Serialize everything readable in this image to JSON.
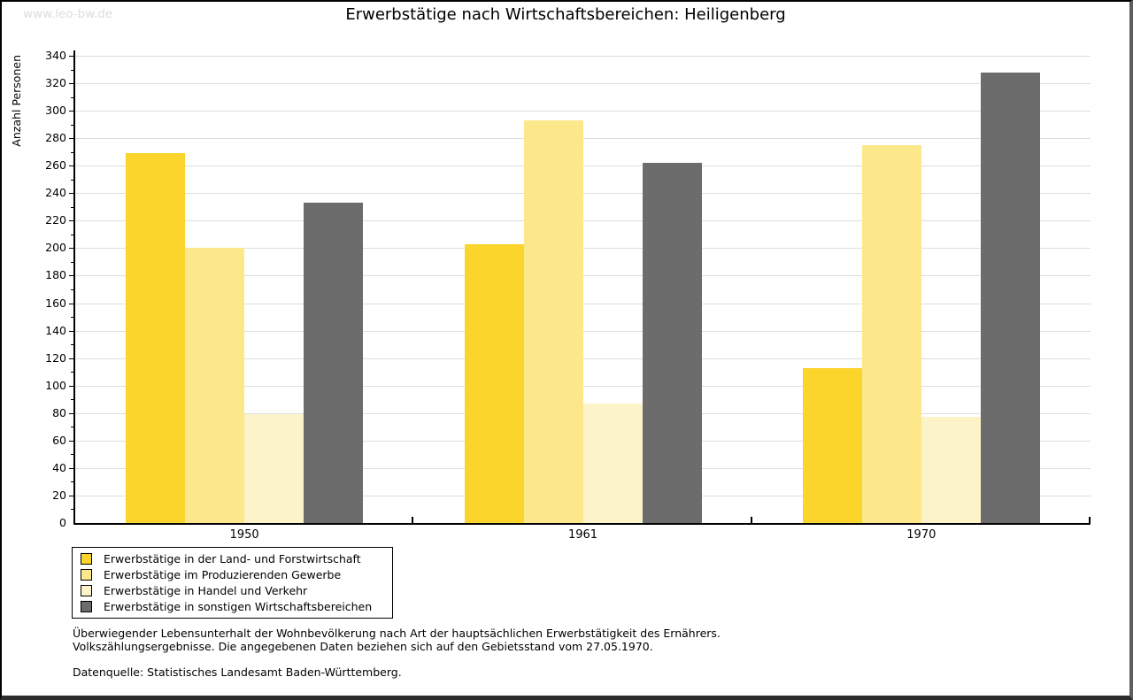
{
  "watermark": "www.leo-bw.de",
  "title": "Erwerbstätige nach Wirtschaftsbereichen: Heiligenberg",
  "chart_data": {
    "type": "bar",
    "title": "Erwerbstätige nach Wirtschaftsbereichen: Heiligenberg",
    "xlabel": "",
    "ylabel": "Anzahl Personen",
    "ylim": [
      0,
      340
    ],
    "ytick_step": 20,
    "y_minor_tick_step": 10,
    "grid": true,
    "legend_position": "bottom-left",
    "categories": [
      "1950",
      "1961",
      "1970"
    ],
    "series": [
      {
        "name": "Erwerbstätige in der Land- und Forstwirtschaft",
        "color": "#FBD42C",
        "values": [
          269,
          203,
          113
        ]
      },
      {
        "name": "Erwerbstätige im Produzierenden Gewerbe",
        "color": "#FCE88B",
        "values": [
          200,
          293,
          275
        ]
      },
      {
        "name": "Erwerbstätige in Handel und Verkehr",
        "color": "#FCF4C8",
        "values": [
          79,
          87,
          77
        ]
      },
      {
        "name": "Erwerbstätige in sonstigen Wirtschaftsbereichen",
        "color": "#6C6C6C",
        "values": [
          233,
          262,
          328
        ]
      }
    ]
  },
  "footnotes": {
    "line1": "Überwiegender Lebensunterhalt der Wohnbevölkerung nach Art der hauptsächlichen Erwerbstätigkeit des Ernährers.",
    "line2": "Volkszählungsergebnisse. Die angegebenen Daten beziehen sich auf den Gebietsstand vom 27.05.1970.",
    "source": "Datenquelle: Statistisches Landesamt Baden-Württemberg."
  }
}
